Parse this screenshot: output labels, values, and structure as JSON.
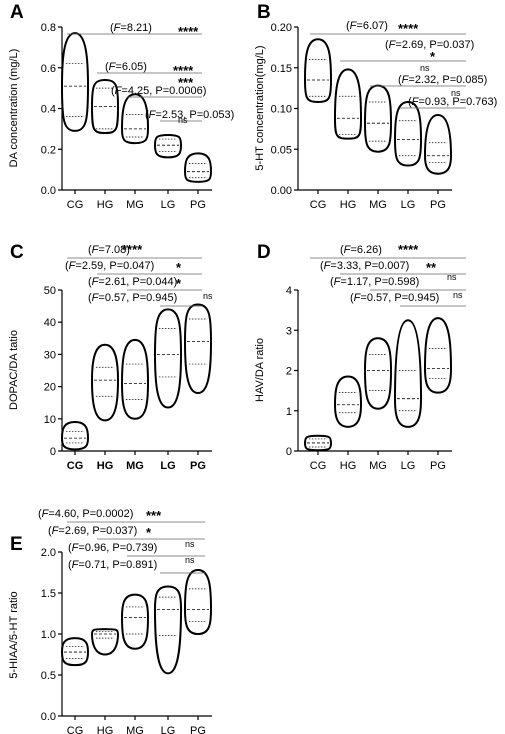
{
  "chart_data": [
    {
      "panel": "A",
      "type": "violin",
      "categories": [
        "CG",
        "HG",
        "MG",
        "LG",
        "PG"
      ],
      "ylabel": "DA concentration (mg/L)",
      "ylim": [
        0,
        0.8
      ],
      "yticks": [
        "0.0",
        "0.2",
        "0.4",
        "0.6",
        "0.8"
      ],
      "series": [
        {
          "category": "CG",
          "min": 0.29,
          "q1": 0.36,
          "median": 0.51,
          "q3": 0.62,
          "max": 0.77
        },
        {
          "category": "HG",
          "min": 0.28,
          "q1": 0.3,
          "median": 0.41,
          "q3": 0.5,
          "max": 0.54
        },
        {
          "category": "MG",
          "min": 0.23,
          "q1": 0.26,
          "median": 0.3,
          "q3": 0.37,
          "max": 0.47
        },
        {
          "category": "LG",
          "min": 0.16,
          "q1": 0.19,
          "median": 0.22,
          "q3": 0.25,
          "max": 0.27
        },
        {
          "category": "PG",
          "min": 0.04,
          "q1": 0.06,
          "median": 0.09,
          "q3": 0.13,
          "max": 0.18
        }
      ],
      "annotations": [
        {
          "stat": "(F=8.21)",
          "sig": "****",
          "from": "CG"
        },
        {
          "stat": "(F=6.05)",
          "sig": "****",
          "from": "HG"
        },
        {
          "stat": "(F=4.25, P=0.0006)",
          "sig": "***",
          "from": "MG"
        },
        {
          "stat": "(F=2.53, P=0.053)",
          "sig": "ns",
          "from": "LG"
        }
      ]
    },
    {
      "panel": "B",
      "type": "violin",
      "categories": [
        "CG",
        "HG",
        "MG",
        "LG",
        "PG"
      ],
      "ylabel": "5-HT concentration(mg/L)",
      "ylim": [
        0,
        0.2
      ],
      "yticks": [
        "0.00",
        "0.05",
        "0.10",
        "0.15",
        "0.20"
      ],
      "series": [
        {
          "category": "CG",
          "min": 0.108,
          "q1": 0.115,
          "median": 0.135,
          "q3": 0.16,
          "max": 0.185
        },
        {
          "category": "HG",
          "min": 0.063,
          "q1": 0.068,
          "median": 0.088,
          "q3": 0.115,
          "max": 0.148
        },
        {
          "category": "MG",
          "min": 0.047,
          "q1": 0.06,
          "median": 0.082,
          "q3": 0.108,
          "max": 0.128
        },
        {
          "category": "LG",
          "min": 0.03,
          "q1": 0.042,
          "median": 0.062,
          "q3": 0.085,
          "max": 0.108
        },
        {
          "category": "PG",
          "min": 0.02,
          "q1": 0.034,
          "median": 0.042,
          "q3": 0.058,
          "max": 0.092
        }
      ],
      "annotations": [
        {
          "stat": "(F=6.07)",
          "sig": "****",
          "from": "CG"
        },
        {
          "stat": "(F=2.69, P=0.037)",
          "sig": "*",
          "from": "HG"
        },
        {
          "stat": "(F=2.32, P=0.085)",
          "sig": "ns",
          "from": "MG"
        },
        {
          "stat": "(F=0.93, P=0.763)",
          "sig": "ns",
          "from": "LG"
        }
      ]
    },
    {
      "panel": "C",
      "type": "violin",
      "categories": [
        "CG",
        "HG",
        "MG",
        "LG",
        "PG"
      ],
      "ylabel": "DOPAC/DA tatio",
      "ylim": [
        0,
        50
      ],
      "yticks": [
        "0",
        "10",
        "20",
        "30",
        "40",
        "50"
      ],
      "series": [
        {
          "category": "CG",
          "min": 0.5,
          "q1": 2.5,
          "median": 4,
          "q3": 6,
          "max": 9
        },
        {
          "category": "HG",
          "min": 9.5,
          "q1": 17,
          "median": 22,
          "q3": 26,
          "max": 33
        },
        {
          "category": "MG",
          "min": 10,
          "q1": 16,
          "median": 21,
          "q3": 27,
          "max": 34.5
        },
        {
          "category": "LG",
          "min": 13.5,
          "q1": 23,
          "median": 30,
          "q3": 38,
          "max": 44
        },
        {
          "category": "PG",
          "min": 18,
          "q1": 27,
          "median": 34,
          "q3": 41,
          "max": 45.5
        }
      ],
      "annotations": [
        {
          "stat": "(F=7.08)",
          "sig": "****",
          "from": "CG"
        },
        {
          "stat": "(F=2.59, P=0.047)",
          "sig": "*",
          "from": "HG"
        },
        {
          "stat": "(F=2.61, P=0.044)",
          "sig": "*",
          "from": "MG"
        },
        {
          "stat": "(F=0.57, P=0.945)",
          "sig": "ns",
          "from": "LG"
        }
      ]
    },
    {
      "panel": "D",
      "type": "violin",
      "categories": [
        "CG",
        "HG",
        "MG",
        "LG",
        "PG"
      ],
      "ylabel": "HAV/DA ratio",
      "ylim": [
        0,
        4
      ],
      "yticks": [
        "0",
        "1",
        "2",
        "3",
        "4"
      ],
      "series": [
        {
          "category": "CG",
          "min": 0.02,
          "q1": 0.1,
          "median": 0.2,
          "q3": 0.3,
          "max": 0.38
        },
        {
          "category": "HG",
          "min": 0.6,
          "q1": 0.95,
          "median": 1.15,
          "q3": 1.45,
          "max": 1.85
        },
        {
          "category": "MG",
          "min": 1.05,
          "q1": 1.5,
          "median": 2.0,
          "q3": 2.4,
          "max": 2.8
        },
        {
          "category": "LG",
          "min": 0.6,
          "q1": 1.0,
          "median": 1.3,
          "q3": 2.0,
          "max": 3.25
        },
        {
          "category": "PG",
          "min": 1.45,
          "q1": 1.8,
          "median": 2.05,
          "q3": 2.55,
          "max": 3.3
        }
      ],
      "annotations": [
        {
          "stat": "(F=6.26)",
          "sig": "****",
          "from": "CG"
        },
        {
          "stat": "(F=3.33, P=0.007)",
          "sig": "**",
          "from": "HG"
        },
        {
          "stat": "(F=1.17, P=0.598)",
          "sig": "ns",
          "from": "MG"
        },
        {
          "stat": "(F=0.57, P=0.945)",
          "sig": "ns",
          "from": "LG"
        }
      ]
    },
    {
      "panel": "E",
      "type": "violin",
      "categories": [
        "CG",
        "HG",
        "MG",
        "LG",
        "PG"
      ],
      "ylabel": "5-HIAA/5-HT ratio",
      "ylim": [
        0,
        2.0
      ],
      "yticks": [
        "0.0",
        "0.5",
        "1.0",
        "1.5",
        "2.0"
      ],
      "series": [
        {
          "category": "CG",
          "min": 0.62,
          "q1": 0.7,
          "median": 0.78,
          "q3": 0.85,
          "max": 0.95
        },
        {
          "category": "HG",
          "min": 0.75,
          "q1": 0.95,
          "median": 1.0,
          "q3": 1.03,
          "max": 1.06
        },
        {
          "category": "MG",
          "min": 0.82,
          "q1": 1.0,
          "median": 1.2,
          "q3": 1.33,
          "max": 1.48
        },
        {
          "category": "LG",
          "min": 0.52,
          "q1": 0.98,
          "median": 1.3,
          "q3": 1.45,
          "max": 1.58
        },
        {
          "category": "PG",
          "min": 1.0,
          "q1": 1.15,
          "median": 1.3,
          "q3": 1.55,
          "max": 1.78
        }
      ],
      "annotations": [
        {
          "stat": "(F=4.60, P=0.0002)",
          "sig": "***",
          "from": "CG"
        },
        {
          "stat": "(F=2.69, P=0.037)",
          "sig": "*",
          "from": "HG"
        },
        {
          "stat": "(F=0.96, P=0.739)",
          "sig": "ns",
          "from": "MG"
        },
        {
          "stat": "(F=0.71, P=0.891)",
          "sig": "ns",
          "from": "LG"
        }
      ]
    }
  ]
}
